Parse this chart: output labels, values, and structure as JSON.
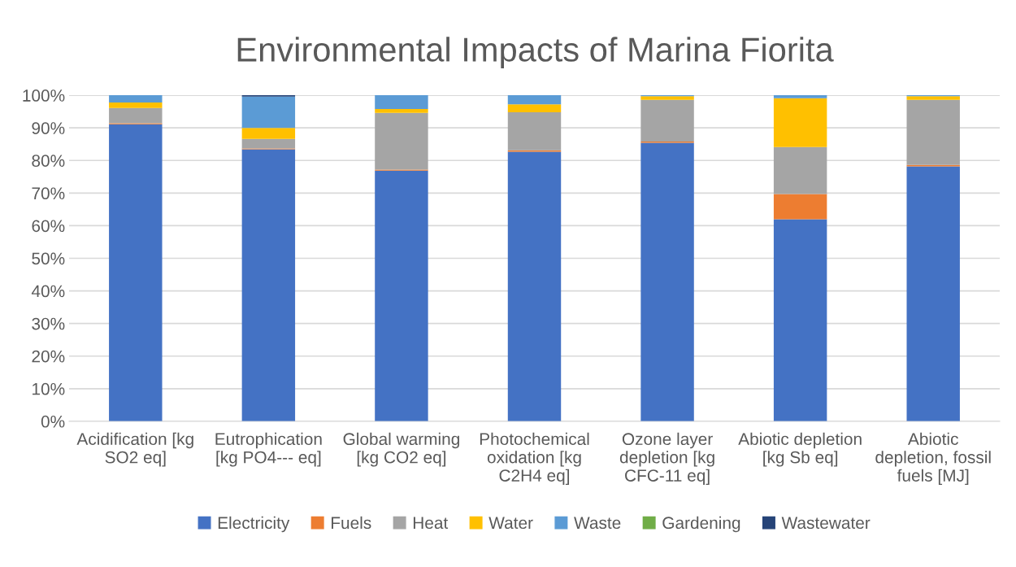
{
  "chart_data": {
    "type": "bar",
    "title": "Environmental Impacts of Marina Fiorita",
    "stacked": true,
    "categories": [
      "Acidification [kg SO2 eq]",
      "Eutrophication [kg PO4--- eq]",
      "Global warming [kg CO2 eq]",
      "Photochemical oxidation [kg C2H4 eq]",
      "Ozone layer depletion [kg CFC-11 eq]",
      "Abiotic depletion [kg Sb eq]",
      "Abiotic depletion, fossil fuels [MJ]"
    ],
    "series": [
      {
        "name": "Electricity",
        "color": "#4472c4",
        "values": [
          91.1,
          83.4,
          76.9,
          82.7,
          85.4,
          62.0,
          78.2
        ]
      },
      {
        "name": "Fuels",
        "color": "#ed7d31",
        "values": [
          0.3,
          0.3,
          0.3,
          0.4,
          0.4,
          7.7,
          0.4
        ]
      },
      {
        "name": "Heat",
        "color": "#a5a5a5",
        "values": [
          4.7,
          2.9,
          17.4,
          11.7,
          12.8,
          14.4,
          20.0
        ]
      },
      {
        "name": "Water",
        "color": "#ffc000",
        "values": [
          1.7,
          3.4,
          1.2,
          2.4,
          1.1,
          15.0,
          1.1
        ]
      },
      {
        "name": "Waste",
        "color": "#5b9bd5",
        "values": [
          2.2,
          9.6,
          4.2,
          2.8,
          0.3,
          0.9,
          0.3
        ]
      },
      {
        "name": "Gardening",
        "color": "#70ad47",
        "values": [
          0,
          0,
          0,
          0,
          0,
          0,
          0
        ]
      },
      {
        "name": "Wastewater",
        "color": "#264478",
        "values": [
          0,
          0.4,
          0,
          0,
          0,
          0,
          0
        ]
      }
    ],
    "ylim": [
      0,
      100
    ],
    "yticks": [
      {
        "value": 0,
        "label": "0%"
      },
      {
        "value": 10,
        "label": "10%"
      },
      {
        "value": 20,
        "label": "20%"
      },
      {
        "value": 30,
        "label": "30%"
      },
      {
        "value": 40,
        "label": "40%"
      },
      {
        "value": 50,
        "label": "50%"
      },
      {
        "value": 60,
        "label": "60%"
      },
      {
        "value": 70,
        "label": "70%"
      },
      {
        "value": 80,
        "label": "80%"
      },
      {
        "value": 90,
        "label": "90%"
      },
      {
        "value": 100,
        "label": "100%"
      }
    ],
    "grid": "y",
    "legend": "bottom"
  }
}
